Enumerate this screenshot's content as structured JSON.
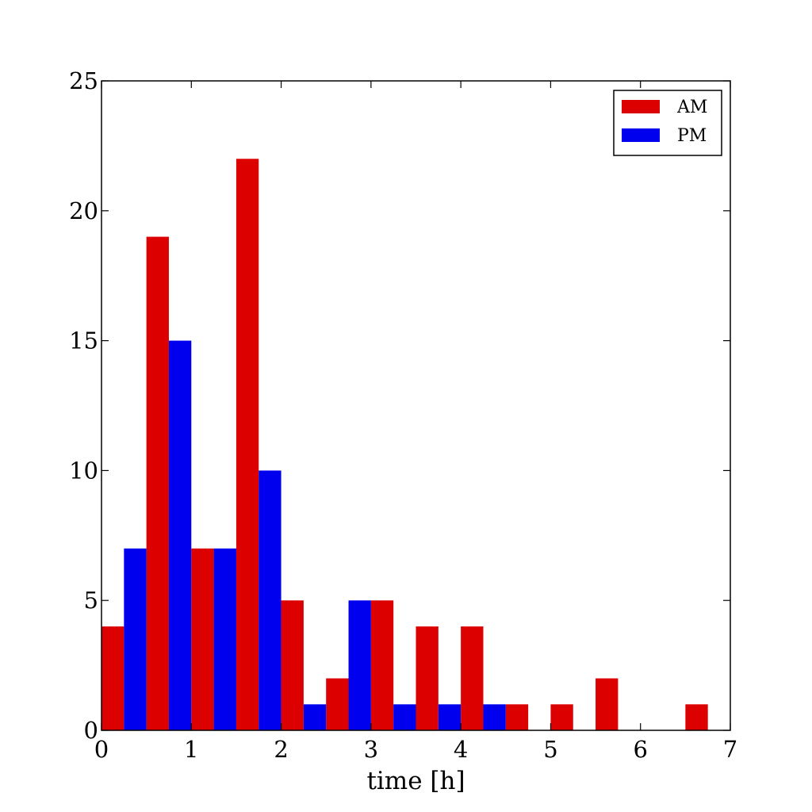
{
  "chart_data": {
    "type": "bar",
    "title": "",
    "xlabel": "time [h]",
    "ylabel": "",
    "xlim": [
      0,
      7
    ],
    "ylim": [
      0,
      25
    ],
    "xticks": [
      0,
      1,
      2,
      3,
      4,
      5,
      6,
      7
    ],
    "yticks": [
      0,
      5,
      10,
      15,
      20,
      25
    ],
    "bin_width": 0.5,
    "bin_starts": [
      0,
      0.5,
      1.0,
      1.5,
      2.0,
      2.5,
      3.0,
      3.5,
      4.0,
      4.5,
      5.0,
      5.5,
      6.0,
      6.5
    ],
    "grid": false,
    "legend_position": "top-right",
    "series": [
      {
        "name": "AM",
        "color": "#dd0000",
        "values": [
          4,
          19,
          7,
          22,
          5,
          2,
          5,
          4,
          4,
          1,
          1,
          2,
          0,
          1
        ]
      },
      {
        "name": "PM",
        "color": "#0000ee",
        "values": [
          7,
          15,
          7,
          10,
          1,
          5,
          1,
          1,
          1,
          0,
          0,
          0,
          0,
          0
        ]
      }
    ]
  }
}
